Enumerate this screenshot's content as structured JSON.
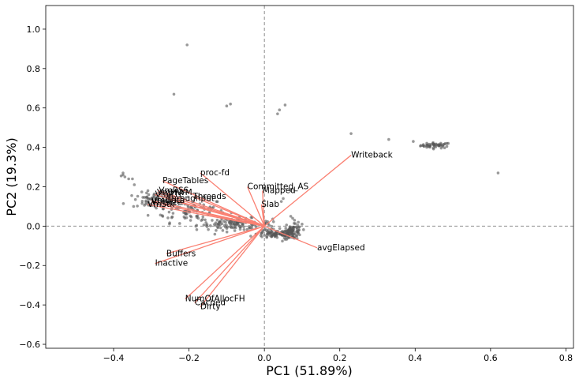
{
  "chart_data": {
    "type": "scatter",
    "subtype": "pca-biplot",
    "xlabel": "PC1 (51.89%)",
    "ylabel": "PC2 (19.3%)",
    "xlim": [
      -0.58,
      0.82
    ],
    "ylim": [
      -0.62,
      1.12
    ],
    "xticks": [
      -0.4,
      -0.2,
      0.0,
      0.2,
      0.4,
      0.6,
      0.8
    ],
    "xtick_labels": [
      "−0.4",
      "−0.2",
      "0.0",
      "0.2",
      "0.4",
      "0.6",
      "0.8"
    ],
    "yticks": [
      -0.6,
      -0.4,
      -0.2,
      0.0,
      0.2,
      0.4,
      0.6,
      0.8,
      1.0
    ],
    "ytick_labels": [
      "−0.6",
      "−0.4",
      "−0.2",
      "0.0",
      "0.2",
      "0.4",
      "0.6",
      "0.8",
      "1.0"
    ],
    "grid": false,
    "reference_lines": {
      "x": 0,
      "y": 0,
      "style": "dashed",
      "color": "#808080"
    },
    "colors": {
      "points": "#555555",
      "loadings": "#fa8072"
    },
    "loadings": [
      {
        "name": "Writeback",
        "x": 0.23,
        "y": 0.36
      },
      {
        "name": "avgElapsed",
        "x": 0.14,
        "y": -0.11
      },
      {
        "name": "Committed_AS",
        "x": -0.045,
        "y": 0.2
      },
      {
        "name": "Mapped",
        "x": -0.005,
        "y": 0.18
      },
      {
        "name": "Slab",
        "x": -0.008,
        "y": 0.11
      },
      {
        "name": "proc-fd",
        "x": -0.17,
        "y": 0.27
      },
      {
        "name": "PageTables",
        "x": -0.27,
        "y": 0.23
      },
      {
        "name": "VmRSS",
        "x": -0.28,
        "y": 0.18
      },
      {
        "name": "VmHWM",
        "x": -0.285,
        "y": 0.17
      },
      {
        "name": "VmPTE",
        "x": -0.29,
        "y": 0.16
      },
      {
        "name": "Threads",
        "x": -0.19,
        "y": 0.15
      },
      {
        "name": "Throughput",
        "x": -0.26,
        "y": 0.14
      },
      {
        "name": "VmData",
        "x": -0.3,
        "y": 0.13
      },
      {
        "name": "VmSize",
        "x": -0.3,
        "y": 0.12
      },
      {
        "name": "VmStk",
        "x": -0.31,
        "y": 0.11
      },
      {
        "name": "Buffers",
        "x": -0.26,
        "y": -0.14
      },
      {
        "name": "Inactive",
        "x": -0.29,
        "y": -0.19
      },
      {
        "name": "NumOfAllocFH",
        "x": -0.21,
        "y": -0.37
      },
      {
        "name": "Cached",
        "x": -0.185,
        "y": -0.39
      },
      {
        "name": "Dirty",
        "x": -0.17,
        "y": -0.41
      }
    ],
    "points": [
      [
        -0.205,
        0.92
      ],
      [
        -0.24,
        0.67
      ],
      [
        -0.09,
        0.62
      ],
      [
        -0.1,
        0.61
      ],
      [
        0.055,
        0.615
      ],
      [
        0.04,
        0.59
      ],
      [
        0.035,
        0.57
      ],
      [
        0.23,
        0.47
      ],
      [
        0.33,
        0.44
      ],
      [
        0.395,
        0.43
      ],
      [
        0.62,
        0.27
      ],
      [
        -0.375,
        0.27
      ],
      [
        -0.375,
        0.26
      ],
      [
        -0.38,
        0.255
      ],
      [
        -0.37,
        0.25
      ],
      [
        -0.36,
        0.24
      ],
      [
        -0.35,
        0.24
      ],
      [
        -0.345,
        0.21
      ],
      [
        0.07,
        0.18
      ],
      [
        0.05,
        0.14
      ],
      [
        0.045,
        0.125
      ],
      [
        0.07,
        0.05
      ],
      [
        0.075,
        0.04
      ],
      [
        0.08,
        0.03
      ],
      [
        0.09,
        0.02
      ],
      [
        0.1,
        0.01
      ],
      [
        -0.12,
        0.02
      ],
      [
        -0.09,
        0.01
      ],
      [
        -0.04,
        -0.01
      ],
      [
        0.0,
        -0.02
      ]
    ],
    "clusters": [
      {
        "center": [
          0.455,
          0.41
        ],
        "spread": [
          0.02,
          0.007
        ],
        "count": 50
      },
      {
        "center": [
          -0.29,
          0.13
        ],
        "spread": [
          0.03,
          0.02
        ],
        "count": 70
      },
      {
        "center": [
          -0.2,
          0.08
        ],
        "spread": [
          0.05,
          0.03
        ],
        "count": 90
      },
      {
        "center": [
          -0.08,
          0.01
        ],
        "spread": [
          0.05,
          0.015
        ],
        "count": 120
      },
      {
        "center": [
          0.03,
          -0.04
        ],
        "spread": [
          0.025,
          0.012
        ],
        "count": 90
      },
      {
        "center": [
          0.075,
          -0.03
        ],
        "spread": [
          0.012,
          0.018
        ],
        "count": 90
      }
    ]
  }
}
